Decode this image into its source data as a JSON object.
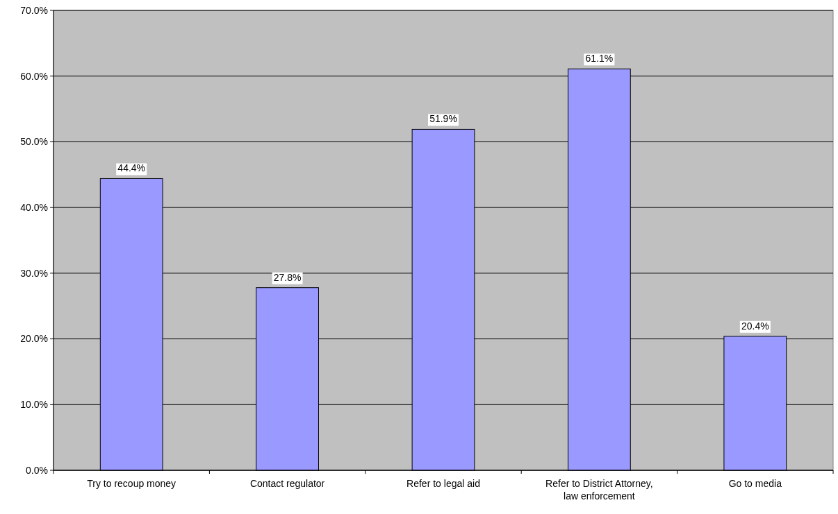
{
  "chart_data": {
    "type": "bar",
    "categories": [
      "Try to recoup money",
      "Contact regulator",
      "Refer to legal aid",
      "Refer to District Attorney, law enforcement",
      "Go to media"
    ],
    "values": [
      44.4,
      27.8,
      51.9,
      61.1,
      20.4
    ],
    "value_labels": [
      "44.4%",
      "27.8%",
      "51.9%",
      "61.1%",
      "20.4%"
    ],
    "color": "#9999ff",
    "ylim": [
      0,
      70
    ],
    "yticks": [
      {
        "value": 0,
        "label": "0.0%"
      },
      {
        "value": 10,
        "label": "10.0%"
      },
      {
        "value": 20,
        "label": "20.0%"
      },
      {
        "value": 30,
        "label": "30.0%"
      },
      {
        "value": 40,
        "label": "40.0%"
      },
      {
        "value": 50,
        "label": "50.0%"
      },
      {
        "value": 60,
        "label": "60.0%"
      },
      {
        "value": 70,
        "label": "70.0%"
      }
    ],
    "grid": "y"
  }
}
